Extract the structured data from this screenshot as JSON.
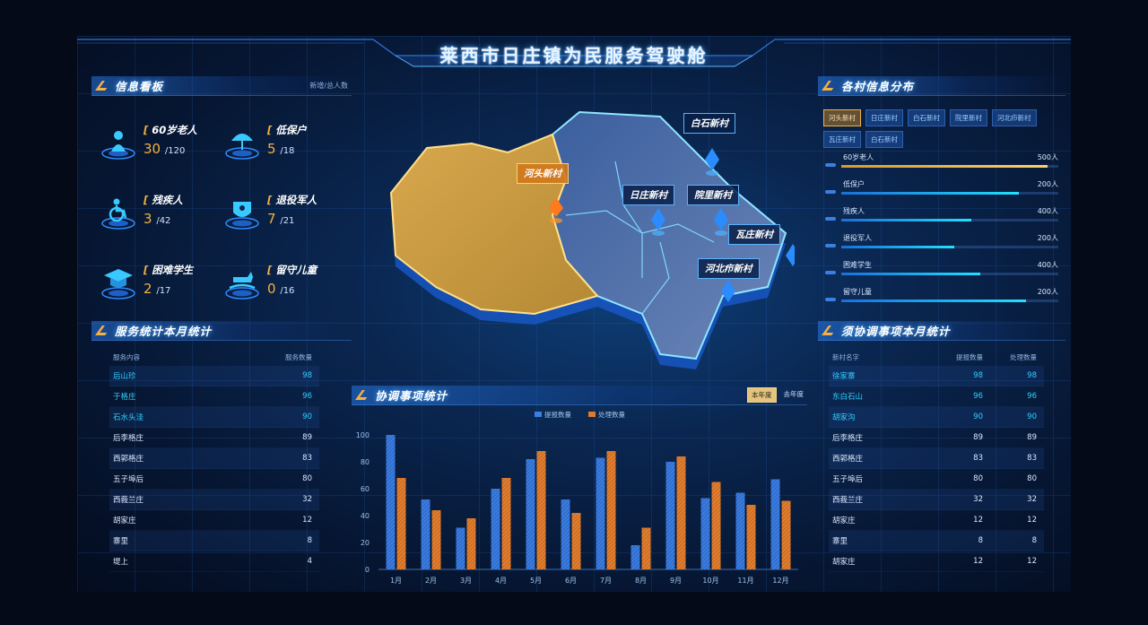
{
  "title": "莱西市日庄镇为民服务驾驶舱",
  "info_board": {
    "title": "信息看板",
    "subtitle": "新增/总人数",
    "items": [
      {
        "label": "60岁老人",
        "value": "30",
        "total": "/120"
      },
      {
        "label": "低保户",
        "value": "5",
        "total": "/18"
      },
      {
        "label": "残疾人",
        "value": "3",
        "total": "/42"
      },
      {
        "label": "退役军人",
        "value": "7",
        "total": "/21"
      },
      {
        "label": "困难学生",
        "value": "2",
        "total": "/17"
      },
      {
        "label": "留守儿童",
        "value": "0",
        "total": "/16"
      }
    ]
  },
  "service_stats": {
    "title": "服务统计本月统计",
    "col1": "服务内容",
    "col2": "服务数量",
    "rows": [
      {
        "name": "后山珍",
        "count": "98"
      },
      {
        "name": "于格庄",
        "count": "96"
      },
      {
        "name": "石水头洼",
        "count": "90"
      },
      {
        "name": "后李格庄",
        "count": "89"
      },
      {
        "name": "西郭格庄",
        "count": "83"
      },
      {
        "name": "五子埠后",
        "count": "80"
      },
      {
        "name": "西莪兰庄",
        "count": "32"
      },
      {
        "name": "胡家庄",
        "count": "12"
      },
      {
        "name": "寨里",
        "count": "8"
      },
      {
        "name": "堤上",
        "count": "4"
      }
    ]
  },
  "village_dist": {
    "title": "各村信息分布",
    "tags": [
      "河头新村",
      "日庄新村",
      "白石新村",
      "院里新村",
      "河北疖新村",
      "瓦庄新村",
      "白石新村"
    ],
    "bars": [
      {
        "label": "60岁老人",
        "value": "500人",
        "ratio": 0.95
      },
      {
        "label": "低保户",
        "value": "200人",
        "ratio": 0.82
      },
      {
        "label": "残疾人",
        "value": "400人",
        "ratio": 0.6
      },
      {
        "label": "退役军人",
        "value": "200人",
        "ratio": 0.52
      },
      {
        "label": "困难学生",
        "value": "400人",
        "ratio": 0.64
      },
      {
        "label": "留守儿童",
        "value": "200人",
        "ratio": 0.85
      }
    ]
  },
  "coord_stats": {
    "title": "须协调事项本月统计",
    "col1": "新村名字",
    "col2": "提报数量",
    "col3": "处理数量",
    "rows": [
      {
        "name": "徐家寨",
        "a": "98",
        "b": "98"
      },
      {
        "name": "东白石山",
        "a": "96",
        "b": "96"
      },
      {
        "name": "胡家沟",
        "a": "90",
        "b": "90"
      },
      {
        "name": "后李格庄",
        "a": "89",
        "b": "89"
      },
      {
        "name": "西郭格庄",
        "a": "83",
        "b": "83"
      },
      {
        "name": "五子埠后",
        "a": "80",
        "b": "80"
      },
      {
        "name": "西莪兰庄",
        "a": "32",
        "b": "32"
      },
      {
        "name": "胡家庄",
        "a": "12",
        "b": "12"
      },
      {
        "name": "寨里",
        "a": "8",
        "b": "8"
      },
      {
        "name": "胡家庄",
        "a": "12",
        "b": "12"
      }
    ]
  },
  "map": {
    "labels": [
      "白石新村",
      "河头新村",
      "日庄新村",
      "院里新村",
      "瓦庄新村",
      "河北疖新村"
    ]
  },
  "colors": {
    "gold": "#f5b041",
    "blue": "#3b7fe0",
    "orange": "#e07b2c",
    "cyan": "#2fd0ff"
  },
  "chart_title": "协调事项统计",
  "year_buttons": [
    "本年度",
    "去年度"
  ],
  "chart_data": {
    "type": "bar",
    "categories": [
      "1月",
      "2月",
      "3月",
      "4月",
      "5月",
      "6月",
      "7月",
      "8月",
      "9月",
      "10月",
      "11月",
      "12月"
    ],
    "series": [
      {
        "name": "提报数量",
        "values": [
          100,
          52,
          31,
          60,
          82,
          52,
          83,
          18,
          80,
          53,
          57,
          67
        ]
      },
      {
        "name": "处理数量",
        "values": [
          68,
          44,
          38,
          68,
          88,
          42,
          88,
          31,
          84,
          65,
          48,
          51
        ]
      }
    ],
    "ylim": [
      0,
      100
    ],
    "yticks": [
      0,
      20,
      40,
      60,
      80,
      100
    ],
    "legend": "top-center",
    "grid": false
  }
}
